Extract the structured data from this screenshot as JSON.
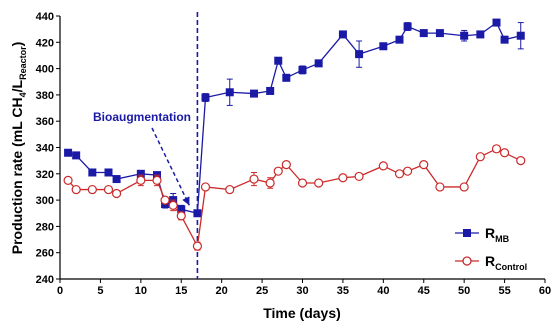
{
  "chart_data": {
    "type": "line",
    "xlabel": "Time (days)",
    "ylabel": {
      "main": "Production rate (mL CH",
      "sub1": "4",
      "mid": "/L",
      "sub2": "Reactor",
      "end": ")"
    },
    "xlim": [
      0,
      60
    ],
    "ylim": [
      240,
      440
    ],
    "xticks": [
      0,
      5,
      10,
      15,
      20,
      25,
      30,
      35,
      40,
      45,
      50,
      55,
      60
    ],
    "yticks": [
      240,
      260,
      280,
      300,
      320,
      340,
      360,
      380,
      400,
      420,
      440
    ],
    "grid": false,
    "legend_position": "bottom-right",
    "series": [
      {
        "legend_main": "R",
        "legend_sub": "MB",
        "color": "#1a1aa6",
        "marker": "square",
        "x": [
          1,
          2,
          4,
          6,
          7,
          10,
          12,
          13,
          14,
          15,
          17,
          18,
          21,
          24,
          26,
          27,
          28,
          30,
          32,
          35,
          37,
          40,
          42,
          43,
          45,
          47,
          50,
          52,
          54,
          55,
          57
        ],
        "y": [
          336,
          334,
          321,
          321,
          316,
          320,
          319,
          297,
          300,
          293,
          290,
          378,
          382,
          381,
          383,
          406,
          393,
          399,
          404,
          426,
          411,
          417,
          422,
          432,
          427,
          427,
          425,
          426,
          435,
          422,
          425
        ],
        "err": [
          0,
          0,
          0,
          0,
          0,
          0,
          0,
          3,
          5,
          3,
          2,
          3,
          10,
          0,
          0,
          0,
          0,
          3,
          0,
          0,
          10,
          0,
          0,
          3,
          0,
          0,
          4,
          0,
          0,
          0,
          10
        ]
      },
      {
        "legend_main": "R",
        "legend_sub": "Control",
        "color": "#cc2a2a",
        "marker": "circle-open",
        "x": [
          1,
          2,
          4,
          6,
          7,
          10,
          12,
          13,
          14,
          15,
          17,
          18,
          21,
          24,
          26,
          27,
          28,
          30,
          32,
          35,
          37,
          40,
          42,
          43,
          45,
          47,
          50,
          52,
          54,
          55,
          57
        ],
        "y": [
          315,
          308,
          308,
          308,
          305,
          315,
          315,
          300,
          296,
          288,
          265,
          310,
          308,
          316,
          313,
          322,
          327,
          313,
          313,
          317,
          318,
          326,
          320,
          322,
          327,
          310,
          310,
          333,
          339,
          336,
          330
        ],
        "err": [
          0,
          0,
          0,
          0,
          0,
          4,
          4,
          0,
          4,
          3,
          3,
          0,
          0,
          5,
          4,
          0,
          0,
          0,
          0,
          0,
          0,
          0,
          0,
          0,
          0,
          0,
          0,
          0,
          0,
          0,
          0
        ]
      }
    ],
    "annotation": {
      "text": "Bioaugmentation",
      "color": "#1a1aa6",
      "vline_x": 17,
      "arrow_to": [
        16,
        296
      ]
    }
  }
}
